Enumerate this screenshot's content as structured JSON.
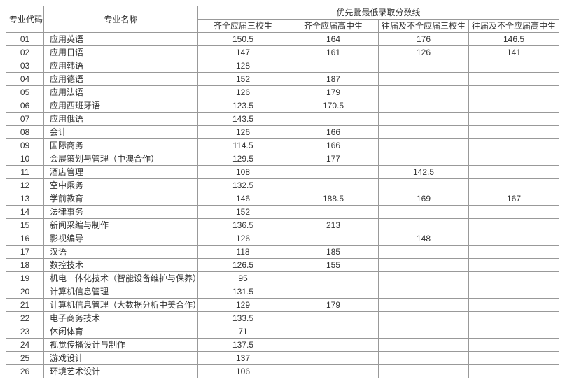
{
  "headers": {
    "code": "专业代码",
    "name": "专业名称",
    "score_group": "优先批最低录取分数线",
    "c1": "齐全应届三校生",
    "c2": "齐全应届高中生",
    "c3": "往届及不全应届三校生",
    "c4": "往届及不全应届高中生"
  },
  "rows": [
    {
      "code": "01",
      "name": "应用英语",
      "s1": "150.5",
      "s2": "164",
      "s3": "176",
      "s4": "146.5"
    },
    {
      "code": "02",
      "name": "应用日语",
      "s1": "147",
      "s2": "161",
      "s3": "126",
      "s4": "141"
    },
    {
      "code": "03",
      "name": "应用韩语",
      "s1": "128",
      "s2": "",
      "s3": "",
      "s4": ""
    },
    {
      "code": "04",
      "name": "应用德语",
      "s1": "152",
      "s2": "187",
      "s3": "",
      "s4": ""
    },
    {
      "code": "05",
      "name": "应用法语",
      "s1": "126",
      "s2": "179",
      "s3": "",
      "s4": ""
    },
    {
      "code": "06",
      "name": "应用西班牙语",
      "s1": "123.5",
      "s2": "170.5",
      "s3": "",
      "s4": ""
    },
    {
      "code": "07",
      "name": "应用俄语",
      "s1": "143.5",
      "s2": "",
      "s3": "",
      "s4": ""
    },
    {
      "code": "08",
      "name": "会计",
      "s1": "126",
      "s2": "166",
      "s3": "",
      "s4": ""
    },
    {
      "code": "09",
      "name": "国际商务",
      "s1": "114.5",
      "s2": "166",
      "s3": "",
      "s4": ""
    },
    {
      "code": "10",
      "name": "会展策划与管理（中澳合作）",
      "s1": "129.5",
      "s2": "177",
      "s3": "",
      "s4": ""
    },
    {
      "code": "11",
      "name": "酒店管理",
      "s1": "108",
      "s2": "",
      "s3": "142.5",
      "s4": ""
    },
    {
      "code": "12",
      "name": "空中乘务",
      "s1": "132.5",
      "s2": "",
      "s3": "",
      "s4": ""
    },
    {
      "code": "13",
      "name": "学前教育",
      "s1": "146",
      "s2": "188.5",
      "s3": "169",
      "s4": "167"
    },
    {
      "code": "14",
      "name": "法律事务",
      "s1": "152",
      "s2": "",
      "s3": "",
      "s4": ""
    },
    {
      "code": "15",
      "name": "新闻采编与制作",
      "s1": "136.5",
      "s2": "213",
      "s3": "",
      "s4": ""
    },
    {
      "code": "16",
      "name": "影视编导",
      "s1": "126",
      "s2": "",
      "s3": "148",
      "s4": ""
    },
    {
      "code": "17",
      "name": "汉语",
      "s1": "118",
      "s2": "185",
      "s3": "",
      "s4": ""
    },
    {
      "code": "18",
      "name": "数控技术",
      "s1": "126.5",
      "s2": "155",
      "s3": "",
      "s4": ""
    },
    {
      "code": "19",
      "name": "机电一体化技术（智能设备维护与保养）",
      "s1": "95",
      "s2": "",
      "s3": "",
      "s4": ""
    },
    {
      "code": "20",
      "name": "计算机信息管理",
      "s1": "131.5",
      "s2": "",
      "s3": "",
      "s4": ""
    },
    {
      "code": "21",
      "name": "计算机信息管理（大数据分析中美合作）",
      "s1": "129",
      "s2": "179",
      "s3": "",
      "s4": ""
    },
    {
      "code": "22",
      "name": "电子商务技术",
      "s1": "133.5",
      "s2": "",
      "s3": "",
      "s4": ""
    },
    {
      "code": "23",
      "name": "休闲体育",
      "s1": "71",
      "s2": "",
      "s3": "",
      "s4": ""
    },
    {
      "code": "24",
      "name": "视觉传播设计与制作",
      "s1": "137.5",
      "s2": "",
      "s3": "",
      "s4": ""
    },
    {
      "code": "25",
      "name": "游戏设计",
      "s1": "137",
      "s2": "",
      "s3": "",
      "s4": ""
    },
    {
      "code": "26",
      "name": "环境艺术设计",
      "s1": "106",
      "s2": "",
      "s3": "",
      "s4": ""
    }
  ]
}
